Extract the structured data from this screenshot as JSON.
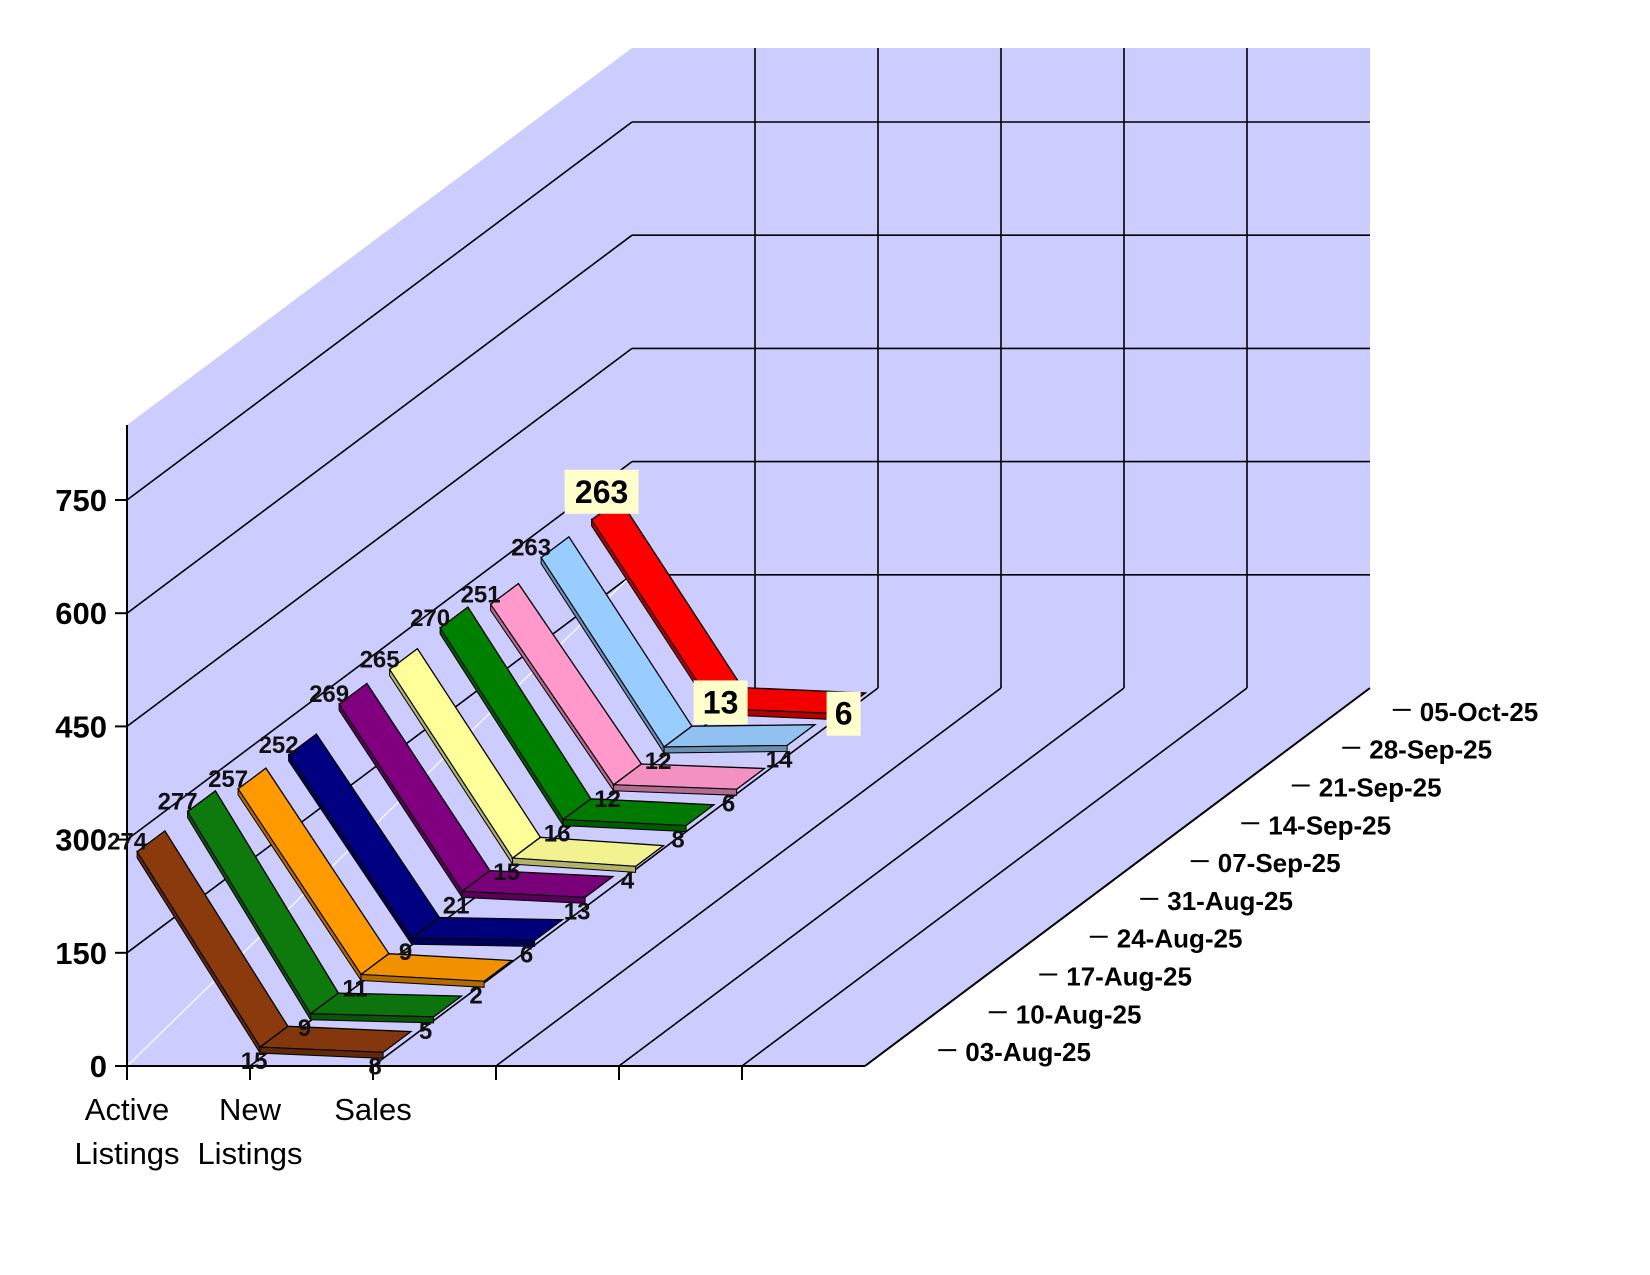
{
  "chart_data": {
    "type": "line",
    "title": "",
    "xlabel": "",
    "ylabel": "",
    "ylim": [
      0,
      750
    ],
    "yticks": [
      0,
      150,
      300,
      450,
      600,
      750
    ],
    "categories": [
      "Active\nListings",
      "New\nListings",
      "Sales"
    ],
    "category_lines": [
      "Active",
      "Listings",
      "New",
      "Listings",
      "Sales"
    ],
    "series": [
      {
        "name": "03-Aug-25",
        "values": [
          274,
          15,
          8
        ],
        "color": "#8B3A0E"
      },
      {
        "name": "10-Aug-25",
        "values": [
          277,
          9,
          5
        ],
        "color": "#0E7A0E"
      },
      {
        "name": "17-Aug-25",
        "values": [
          257,
          11,
          2
        ],
        "color": "#FF9900"
      },
      {
        "name": "24-Aug-25",
        "values": [
          252,
          9,
          6
        ],
        "color": "#000080"
      },
      {
        "name": "31-Aug-25",
        "values": [
          269,
          21,
          13
        ],
        "color": "#800080"
      },
      {
        "name": "07-Sep-25",
        "values": [
          265,
          15,
          4
        ],
        "color": "#FFFF99"
      },
      {
        "name": "14-Sep-25",
        "values": [
          270,
          16,
          8
        ],
        "color": "#008000"
      },
      {
        "name": "21-Sep-25",
        "values": [
          251,
          12,
          6
        ],
        "color": "#FF99CC"
      },
      {
        "name": "28-Sep-25",
        "values": [
          263,
          12,
          14
        ],
        "color": "#99CCFF"
      },
      {
        "name": "05-Oct-25",
        "values": [
          263,
          13,
          6
        ],
        "color": "#FF0000"
      }
    ],
    "depth_labels": [
      "03-Aug-25",
      "10-Aug-25",
      "17-Aug-25",
      "24-Aug-25",
      "31-Aug-25",
      "07-Sep-25",
      "14-Sep-25",
      "21-Sep-25",
      "28-Sep-25",
      "05-Oct-25"
    ],
    "wall_color": "#CCCCFF",
    "grid": true,
    "legend": "none"
  }
}
